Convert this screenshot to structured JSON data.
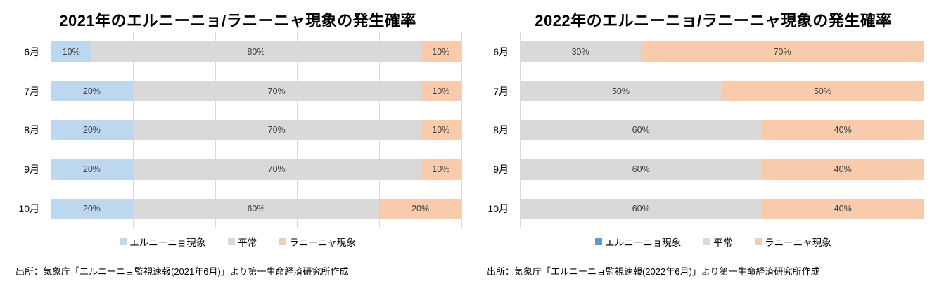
{
  "chart_data": [
    {
      "type": "bar",
      "orientation": "horizontal-stacked",
      "title": "2021年のエルニーニョ/ラニーニャ現象の発生確率",
      "categories": [
        "6月",
        "7月",
        "8月",
        "9月",
        "10月"
      ],
      "series": [
        {
          "name": "エルニーニョ現象",
          "color": "#BDD7EE",
          "legend_color": "#BDD7EE",
          "values": [
            10,
            20,
            20,
            20,
            20
          ]
        },
        {
          "name": "平常",
          "color": "#D9D9D9",
          "legend_color": "#D9D9D9",
          "values": [
            80,
            70,
            70,
            70,
            60
          ]
        },
        {
          "name": "ラニーニャ現象",
          "color": "#F8CBAD",
          "legend_color": "#F8CBAD",
          "values": [
            10,
            10,
            10,
            10,
            20
          ]
        }
      ],
      "value_suffix": "%",
      "xlim": [
        0,
        100
      ],
      "gridline_interval": 20,
      "grid": true,
      "legend_position": "bottom",
      "source": "出所：気象庁「エルニーニョ監視速報(2021年6月)」より第一生命経済研究所作成"
    },
    {
      "type": "bar",
      "orientation": "horizontal-stacked",
      "title": "2022年のエルニーニョ/ラニーニャ現象の発生確率",
      "categories": [
        "6月",
        "7月",
        "8月",
        "9月",
        "10月"
      ],
      "series": [
        {
          "name": "エルニーニョ現象",
          "color": "#5B9BD5",
          "legend_color": "#5B9BD5",
          "values": [
            0,
            0,
            0,
            0,
            0
          ]
        },
        {
          "name": "平常",
          "color": "#D9D9D9",
          "legend_color": "#D9D9D9",
          "values": [
            30,
            50,
            60,
            60,
            60
          ]
        },
        {
          "name": "ラニーニャ現象",
          "color": "#F8CBAD",
          "legend_color": "#F8CBAD",
          "values": [
            70,
            50,
            40,
            40,
            40
          ]
        }
      ],
      "value_suffix": "%",
      "xlim": [
        0,
        100
      ],
      "gridline_interval": 20,
      "grid": true,
      "legend_position": "bottom",
      "source": "出所：気象庁「エルニーニョ監視速報(2022年6月)」より第一生命経済研究所作成"
    }
  ],
  "colors": {
    "gridline": "#D9D9D9",
    "bar_label_text": "#404040",
    "title_text": "#000000"
  }
}
